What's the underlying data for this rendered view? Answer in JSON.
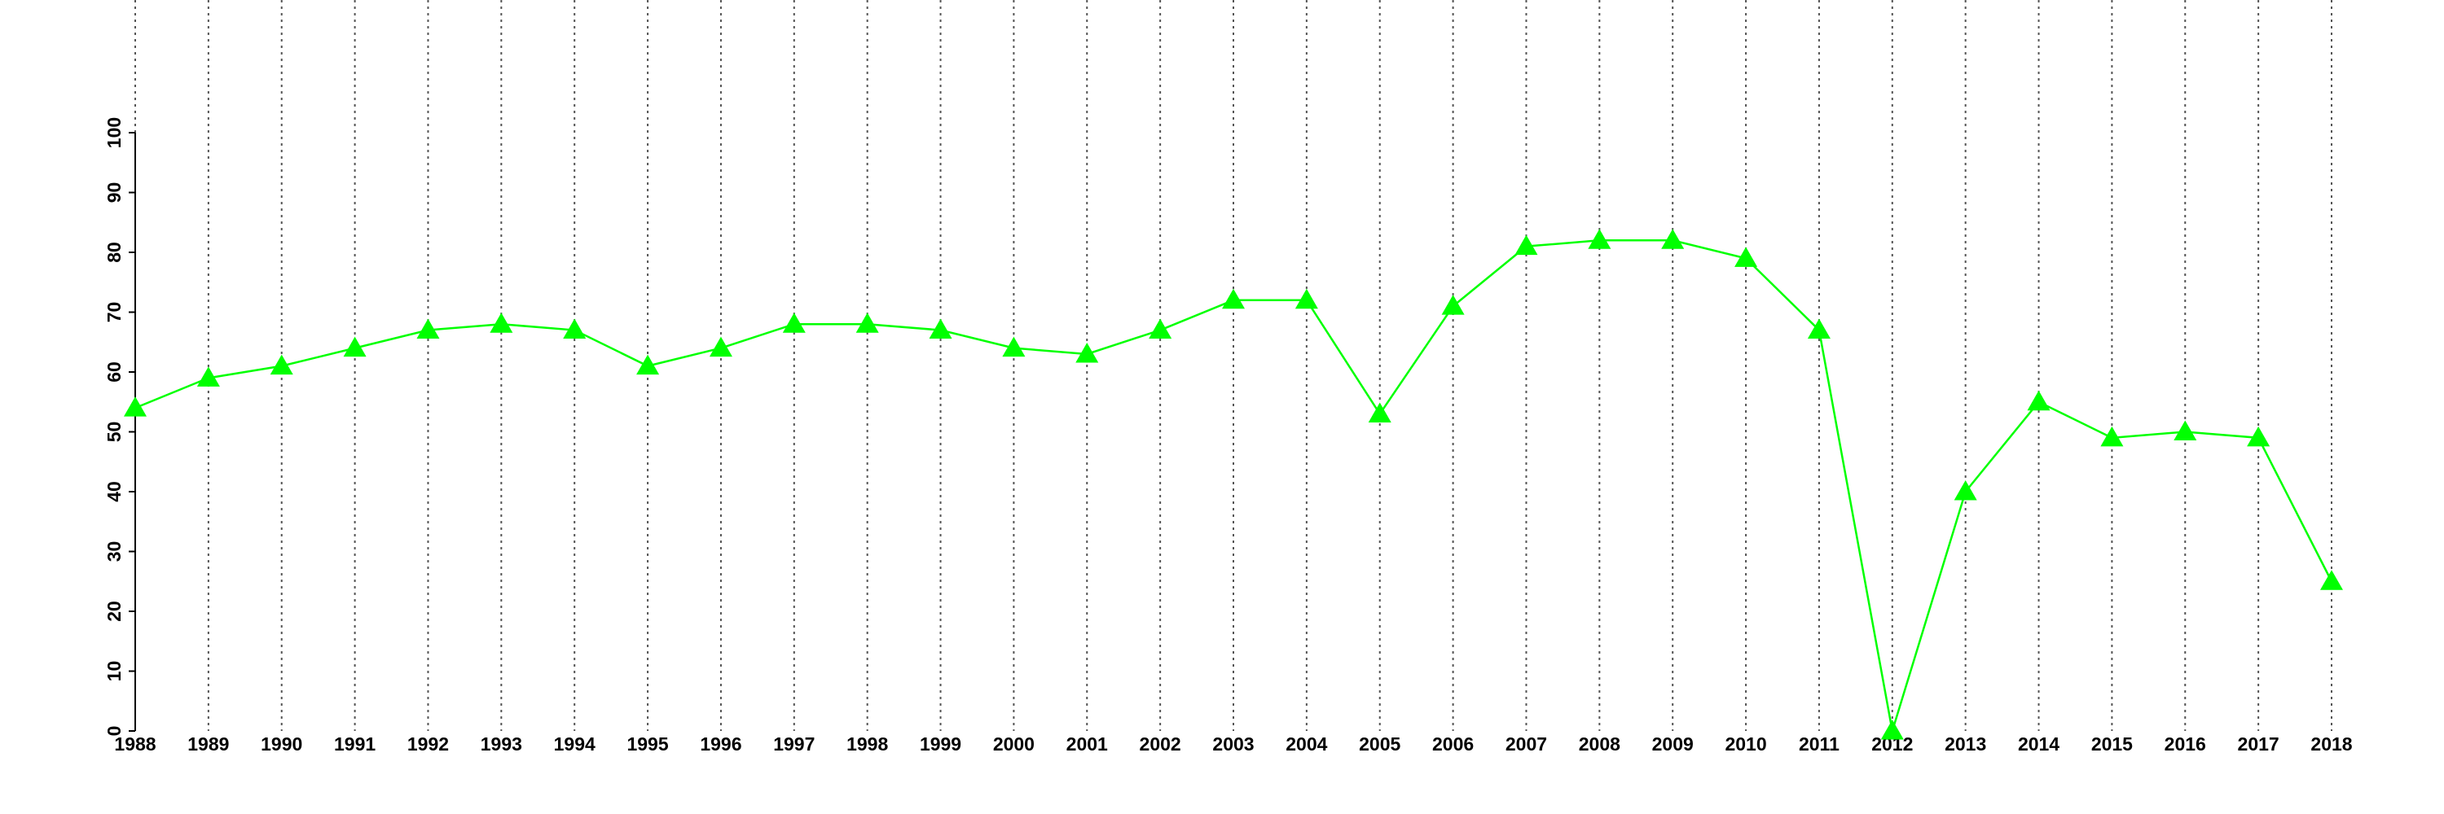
{
  "chart_data": {
    "type": "line",
    "x": [
      1988,
      1989,
      1990,
      1991,
      1992,
      1993,
      1994,
      1995,
      1996,
      1997,
      1998,
      1999,
      2000,
      2001,
      2002,
      2003,
      2004,
      2005,
      2006,
      2007,
      2008,
      2009,
      2010,
      2011,
      2012,
      2013,
      2014,
      2015,
      2016,
      2017,
      2018
    ],
    "series": [
      {
        "color": "#00ff00",
        "marker": "triangle",
        "values": [
          54,
          59,
          61,
          64,
          67,
          68,
          67,
          61,
          64,
          68,
          68,
          67,
          64,
          63,
          67,
          72,
          72,
          53,
          71,
          81,
          82,
          82,
          79,
          67,
          0,
          40,
          55,
          49,
          50,
          49,
          25
        ]
      }
    ],
    "xlim": [
      1988,
      2018
    ],
    "xticks": [
      1988,
      1989,
      1990,
      1991,
      1992,
      1993,
      1994,
      1995,
      1996,
      1997,
      1998,
      1999,
      2000,
      2001,
      2002,
      2003,
      2004,
      2005,
      2006,
      2007,
      2008,
      2009,
      2010,
      2011,
      2012,
      2013,
      2014,
      2015,
      2016,
      2017,
      2018
    ],
    "ylim": [
      0,
      100
    ],
    "yticks": [
      0,
      10,
      20,
      30,
      40,
      50,
      60,
      70,
      80,
      90,
      100
    ],
    "grid": "x"
  }
}
